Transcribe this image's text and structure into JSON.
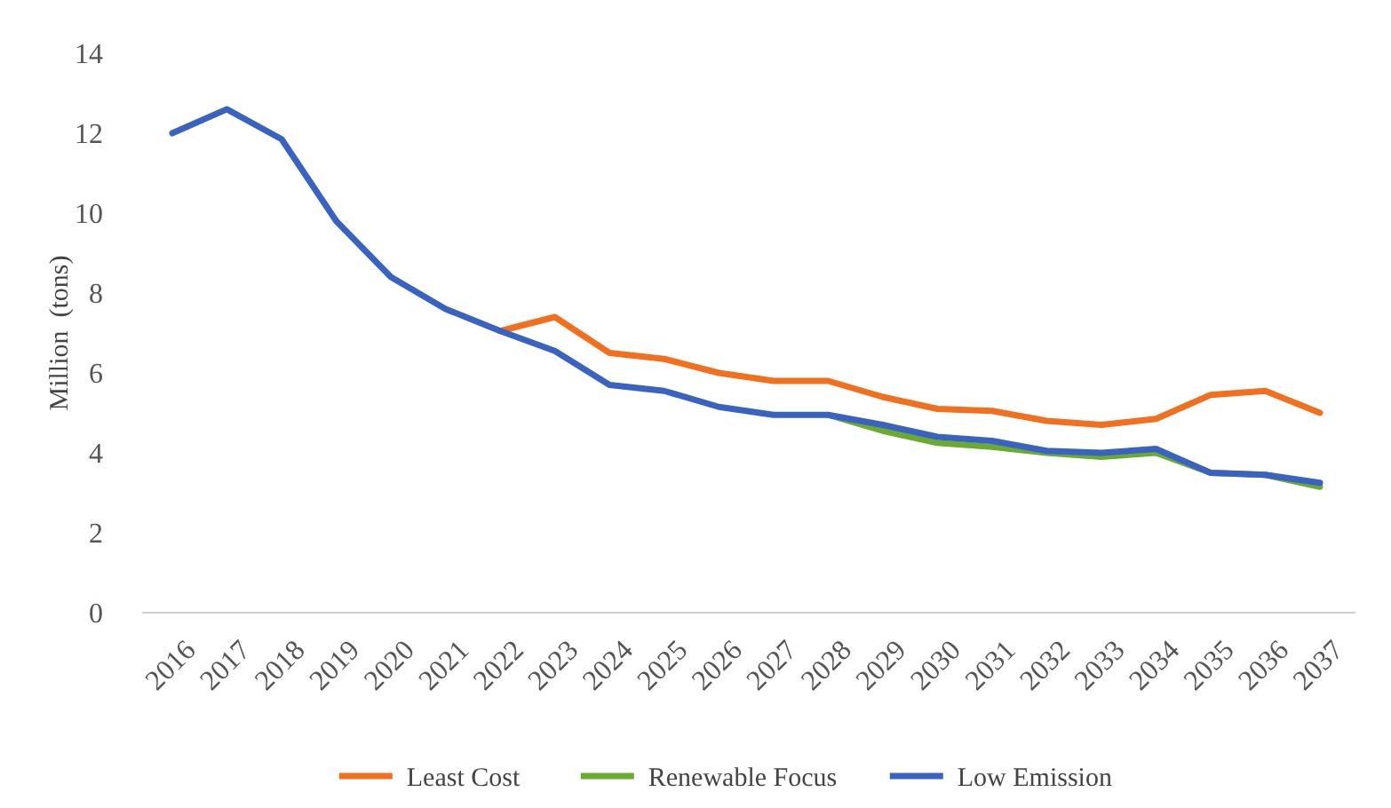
{
  "chart_data": {
    "type": "line",
    "ylabel": "Million  (tons)",
    "categories": [
      "2016",
      "2017",
      "2018",
      "2019",
      "2020",
      "2021",
      "2022",
      "2023",
      "2024",
      "2025",
      "2026",
      "2027",
      "2028",
      "2029",
      "2030",
      "2031",
      "2032",
      "2033",
      "2034",
      "2035",
      "2036",
      "2037"
    ],
    "ylim": [
      0,
      14
    ],
    "yticks": [
      0,
      2,
      4,
      6,
      8,
      10,
      12,
      14
    ],
    "grid": false,
    "legend": "bottom",
    "line_style": "solid",
    "series": [
      {
        "name": "Least Cost",
        "color": "#f07020",
        "values": [
          null,
          null,
          null,
          null,
          null,
          null,
          7.05,
          7.4,
          6.5,
          6.35,
          6.0,
          5.8,
          5.8,
          5.4,
          5.1,
          5.05,
          4.8,
          4.7,
          4.85,
          5.45,
          5.55,
          5.0
        ]
      },
      {
        "name": "Renewable Focus",
        "color": "#6aaa30",
        "values": [
          null,
          null,
          null,
          null,
          null,
          null,
          null,
          null,
          null,
          null,
          null,
          null,
          4.95,
          4.55,
          4.25,
          4.15,
          4.0,
          3.9,
          4.0,
          3.5,
          3.45,
          3.15
        ]
      },
      {
        "name": "Low Emission",
        "color": "#3a62c0",
        "values": [
          12.0,
          12.6,
          11.85,
          9.8,
          8.4,
          7.6,
          7.05,
          6.55,
          5.7,
          5.55,
          5.15,
          4.95,
          4.95,
          4.7,
          4.4,
          4.3,
          4.05,
          4.0,
          4.1,
          3.5,
          3.45,
          3.25
        ]
      }
    ]
  }
}
